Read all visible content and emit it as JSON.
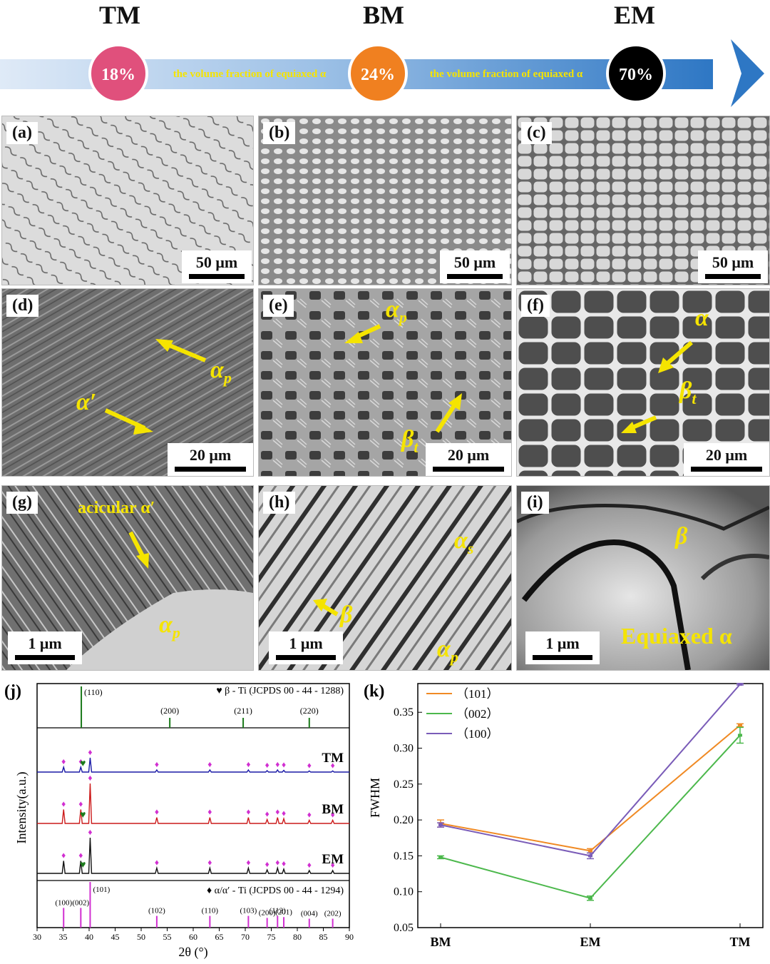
{
  "header": {
    "zones": [
      "TM",
      "BM",
      "EM"
    ],
    "percents": [
      "18%",
      "24%",
      "70%"
    ],
    "arrow_texts": [
      "the volume fraction of equiaxed α",
      "the volume fraction of equiaxed α"
    ],
    "colors": {
      "tm": "#e0507c",
      "bm": "#f08020",
      "em": "#000000",
      "arrow": "#2e77c4",
      "text": "#f5e400"
    }
  },
  "panels": {
    "a": {
      "label": "(a)",
      "scale": "50 μm"
    },
    "b": {
      "label": "(b)",
      "scale": "50 μm"
    },
    "c": {
      "label": "(c)",
      "scale": "50 μm"
    },
    "d": {
      "label": "(d)",
      "scale": "20 μm",
      "ann1": "α",
      "ann1_sub": "p",
      "ann2": "α′"
    },
    "e": {
      "label": "(e)",
      "scale": "20 μm",
      "ann1": "α",
      "ann1_sub": "p",
      "ann2": "β",
      "ann2_sub": "t"
    },
    "f": {
      "label": "(f)",
      "scale": "20 μm",
      "ann1": "α",
      "ann2": "β",
      "ann2_sub": "t"
    },
    "g": {
      "label": "(g)",
      "scale": "1 μm",
      "ann1": "acicular α′",
      "ann2": "α",
      "ann2_sub": "p"
    },
    "h": {
      "label": "(h)",
      "scale": "1 μm",
      "ann1": "α",
      "ann1_sub": "s",
      "ann2": "β",
      "ann3": "α",
      "ann3_sub": "p"
    },
    "i": {
      "label": "(i)",
      "scale": "1 μm",
      "ann1": "β",
      "ann2": "Equiaxed α"
    }
  },
  "xrd": {
    "label": "(j)",
    "beta_ref": "β - Ti (JCPDS 00 - 44 - 1288)",
    "alpha_ref": "α/α′ - Ti (JCPDS 00 - 44 - 1294)",
    "ylabel": "Intensity(a.u.)",
    "xlabel": "2θ (°)",
    "traces": [
      "TM",
      "BM",
      "EM"
    ],
    "x_ticks": [
      30,
      35,
      40,
      45,
      50,
      55,
      60,
      65,
      70,
      75,
      80,
      85,
      90
    ],
    "beta_peaks": [
      {
        "x": 38.5,
        "h": "(110)"
      },
      {
        "x": 55.5,
        "h": "(200)"
      },
      {
        "x": 69.6,
        "h": "(211)"
      },
      {
        "x": 82.3,
        "h": "(220)"
      }
    ],
    "alpha_peaks": [
      {
        "x": 35.1,
        "h": "(100)",
        "i": 0.35
      },
      {
        "x": 38.4,
        "h": "(002)",
        "i": 0.35
      },
      {
        "x": 40.2,
        "h": "(101)",
        "i": 1.0
      },
      {
        "x": 53.0,
        "h": "(102)",
        "i": 0.15
      },
      {
        "x": 63.2,
        "h": "(110)",
        "i": 0.15
      },
      {
        "x": 70.6,
        "h": "(103)",
        "i": 0.15
      },
      {
        "x": 74.2,
        "h": "(200)",
        "i": 0.1
      },
      {
        "x": 76.2,
        "h": "(112)",
        "i": 0.15
      },
      {
        "x": 77.4,
        "h": "(201)",
        "i": 0.12
      },
      {
        "x": 82.3,
        "h": "(004)",
        "i": 0.08
      },
      {
        "x": 86.8,
        "h": "(202)",
        "i": 0.08
      }
    ],
    "colors": {
      "TM": "#1a1aa6",
      "BM": "#cc1a1a",
      "EM": "#111111",
      "beta": "#1a7a1a",
      "alpha": "#d12fd1"
    }
  },
  "chart_data": {
    "type": "line",
    "label": "(k)",
    "categories": [
      "BM",
      "EM",
      "TM"
    ],
    "ylabel": "FWHM",
    "ylim": [
      0.05,
      0.39
    ],
    "yticks": [
      0.05,
      0.1,
      0.15,
      0.2,
      0.25,
      0.3,
      0.35
    ],
    "legend_position": "top-left",
    "series": [
      {
        "name": "（101）",
        "color": "#f08a24",
        "values": [
          0.195,
          0.157,
          0.332
        ],
        "err": [
          0.005,
          0.003,
          0.002
        ]
      },
      {
        "name": "（002）",
        "color": "#4cb84c",
        "values": [
          0.148,
          0.091,
          0.318
        ],
        "err": [
          0.002,
          0.003,
          0.011
        ]
      },
      {
        "name": "（100）",
        "color": "#7a5cb8",
        "values": [
          0.193,
          0.15,
          0.389
        ],
        "err": [
          0.003,
          0.004,
          0.001
        ]
      }
    ]
  }
}
